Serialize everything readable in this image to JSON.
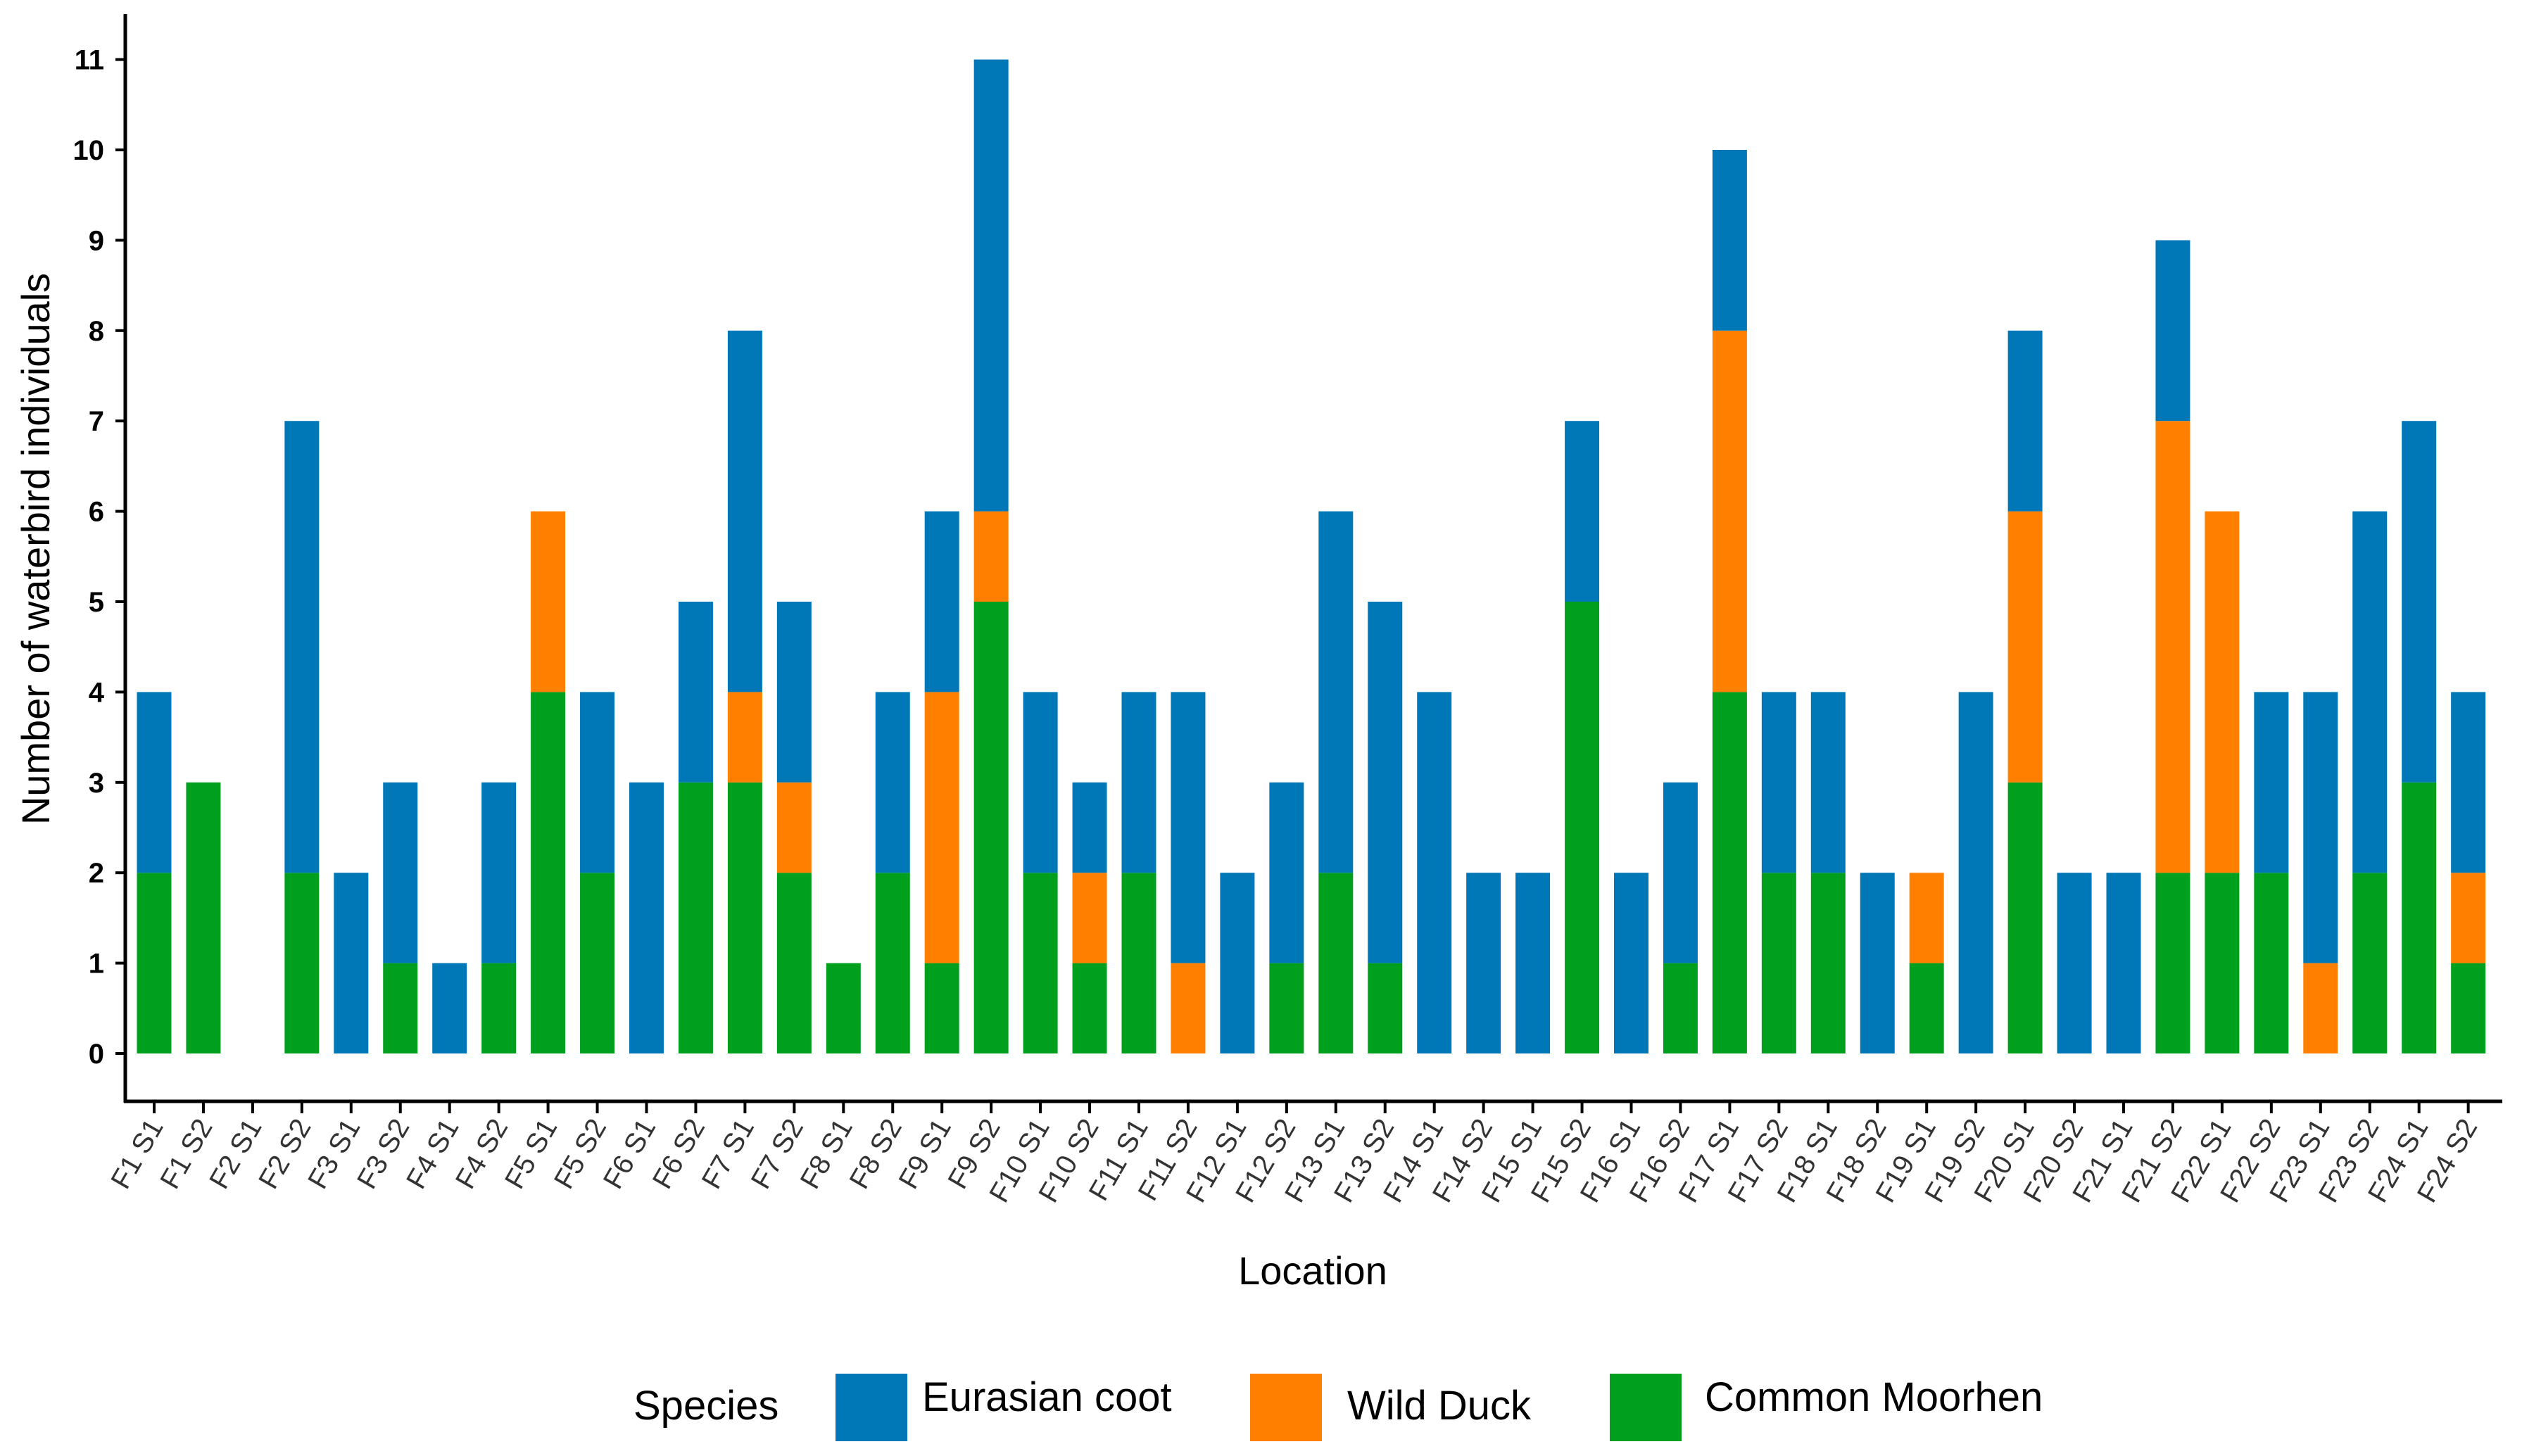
{
  "chart_data": {
    "type": "bar",
    "stacked": true,
    "title": "",
    "xlabel": "Location",
    "ylabel": "Number of waterbird individuals",
    "ylim": [
      0,
      11
    ],
    "y_ticks": [
      0,
      1,
      2,
      3,
      4,
      5,
      6,
      7,
      8,
      9,
      10,
      11
    ],
    "grid": false,
    "legend_position": "bottom",
    "legend_title": "Species",
    "categories": [
      "F1 S1",
      "F1 S2",
      "F2 S1",
      "F2 S2",
      "F3 S1",
      "F3 S2",
      "F4 S1",
      "F4 S2",
      "F5 S1",
      "F5 S2",
      "F6 S1",
      "F6 S2",
      "F7 S1",
      "F7 S2",
      "F8 S1",
      "F8 S2",
      "F9 S1",
      "F9 S2",
      "F10 S1",
      "F10 S2",
      "F11 S1",
      "F11 S2",
      "F12 S1",
      "F12 S2",
      "F13 S1",
      "F13 S2",
      "F14 S1",
      "F14 S2",
      "F15 S1",
      "F15 S2",
      "F16 S1",
      "F16 S2",
      "F17 S1",
      "F17 S2",
      "F18 S1",
      "F18 S2",
      "F19 S1",
      "F19 S2",
      "F20 S1",
      "F20 S2",
      "F21 S1",
      "F21 S2",
      "F22 S1",
      "F22 S2",
      "F23 S1",
      "F23 S2",
      "F24 S1",
      "F24 S2"
    ],
    "series": [
      {
        "name": "Common Moorhen",
        "color": "#00A01E",
        "values": [
          2,
          3,
          0,
          2,
          0,
          1,
          0,
          1,
          4,
          2,
          0,
          3,
          3,
          2,
          1,
          2,
          1,
          5,
          2,
          1,
          2,
          0,
          0,
          1,
          2,
          1,
          0,
          0,
          0,
          5,
          0,
          1,
          4,
          2,
          2,
          0,
          1,
          0,
          3,
          0,
          0,
          2,
          2,
          2,
          0,
          2,
          3,
          1
        ]
      },
      {
        "name": "Wild Duck",
        "color": "#FF7F00",
        "values": [
          0,
          0,
          0,
          0,
          0,
          0,
          0,
          0,
          2,
          0,
          0,
          0,
          1,
          1,
          0,
          0,
          3,
          1,
          0,
          1,
          0,
          1,
          0,
          0,
          0,
          0,
          0,
          0,
          0,
          0,
          0,
          0,
          4,
          0,
          0,
          0,
          1,
          0,
          3,
          0,
          0,
          5,
          4,
          0,
          1,
          0,
          0,
          1
        ]
      },
      {
        "name": "Eurasian coot",
        "color": "#0078B8",
        "values": [
          2,
          0,
          0,
          5,
          2,
          2,
          1,
          2,
          0,
          2,
          3,
          2,
          4,
          2,
          0,
          2,
          2,
          5,
          2,
          1,
          2,
          3,
          2,
          2,
          4,
          4,
          4,
          2,
          2,
          2,
          2,
          2,
          2,
          2,
          2,
          2,
          0,
          4,
          2,
          2,
          2,
          2,
          0,
          2,
          3,
          4,
          4,
          2
        ]
      }
    ],
    "legend_order": [
      "Eurasian coot",
      "Wild Duck",
      "Common Moorhen"
    ]
  }
}
